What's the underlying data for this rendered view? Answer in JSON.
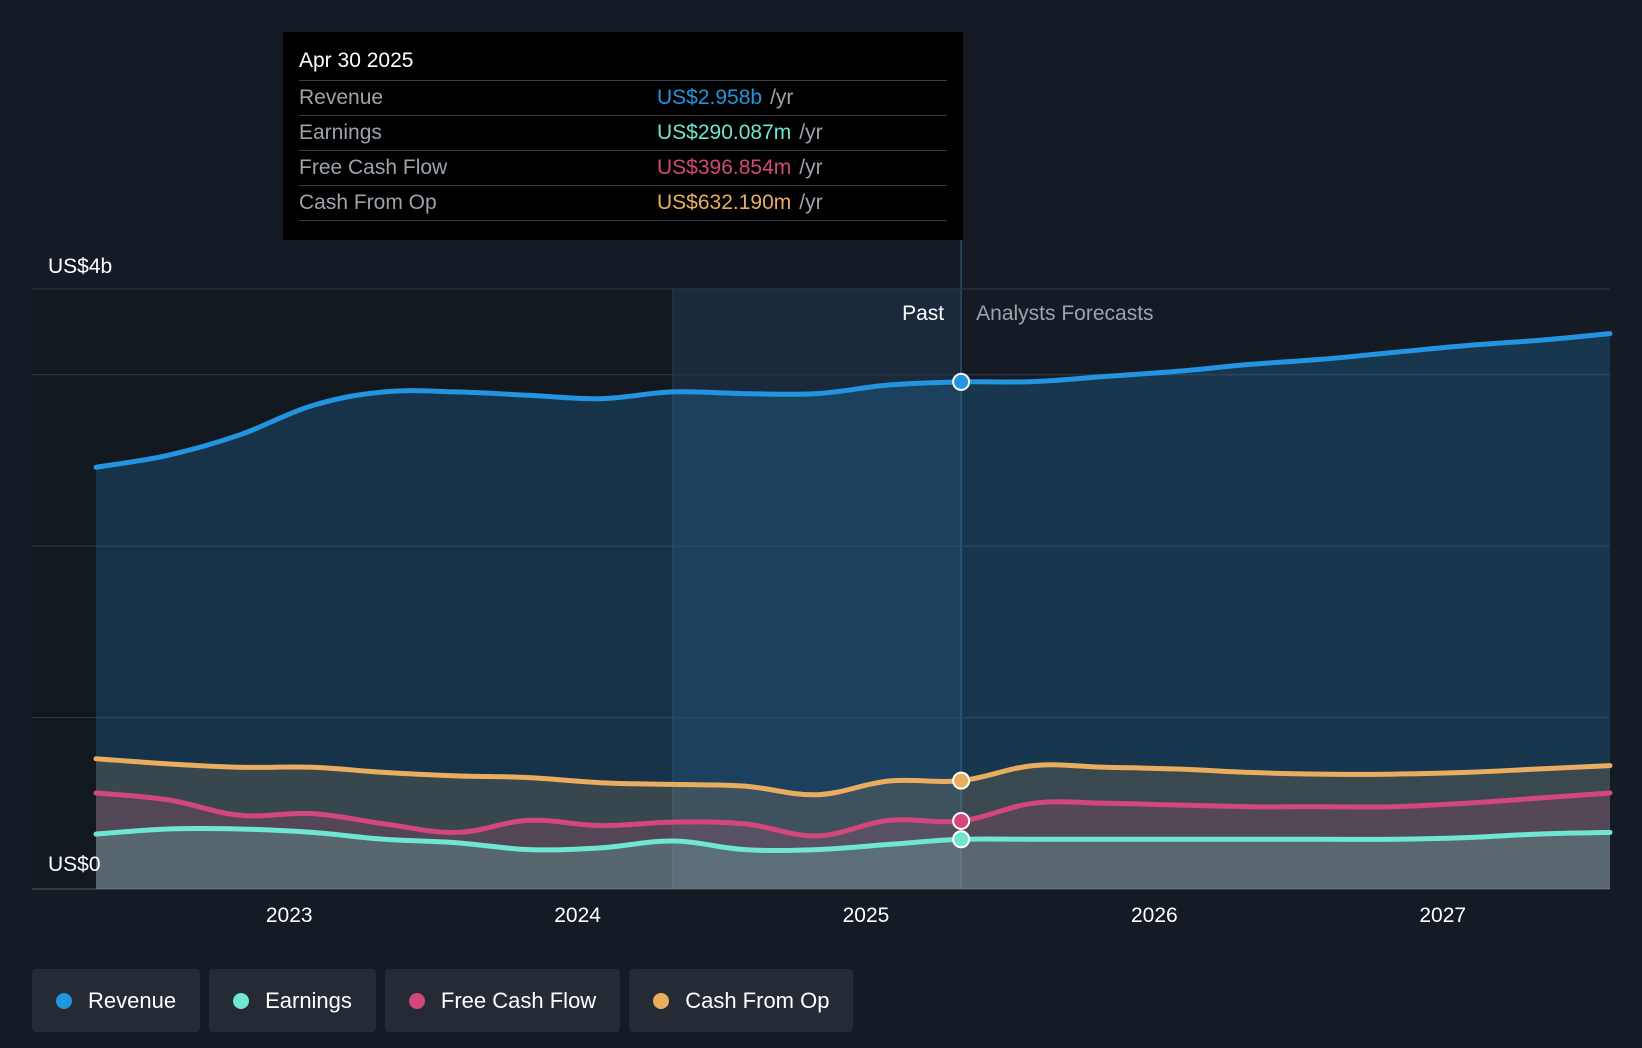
{
  "tooltip": {
    "date": "Apr 30 2025",
    "rows": [
      {
        "label": "Revenue",
        "value": "US$2.958b",
        "unit": "/yr",
        "color": "#2394df"
      },
      {
        "label": "Earnings",
        "value": "US$290.087m",
        "unit": "/yr",
        "color": "#6ee6d2"
      },
      {
        "label": "Free Cash Flow",
        "value": "US$396.854m",
        "unit": "/yr",
        "color": "#d4477c"
      },
      {
        "label": "Cash From Op",
        "value": "US$632.190m",
        "unit": "/yr",
        "color": "#eaad60"
      }
    ]
  },
  "sections": {
    "past": "Past",
    "forecast": "Analysts Forecasts"
  },
  "legend": [
    {
      "label": "Revenue",
      "color": "#2394df"
    },
    {
      "label": "Earnings",
      "color": "#6ee6d2"
    },
    {
      "label": "Free Cash Flow",
      "color": "#d4477c"
    },
    {
      "label": "Cash From Op",
      "color": "#eaad60"
    }
  ],
  "chart_data": {
    "type": "area",
    "title": "",
    "xlabel": "",
    "ylabel": "",
    "x_ticks": [
      {
        "label": "2023",
        "value": 2023.0
      },
      {
        "label": "2024",
        "value": 2024.0
      },
      {
        "label": "2025",
        "value": 2025.0
      },
      {
        "label": "2026",
        "value": 2026.0
      },
      {
        "label": "2027",
        "value": 2027.0
      }
    ],
    "y_ticks": [
      {
        "label": "US$0",
        "value": 0
      },
      {
        "label": "US$4b",
        "value": 3.5
      }
    ],
    "xlim": [
      2022.0,
      2027.6
    ],
    "ylim": [
      0,
      3.5
    ],
    "y_grid": [
      0,
      1,
      2,
      3,
      3.5
    ],
    "highlight_start": 2024.33,
    "past_end": 2025.33,
    "series": [
      {
        "name": "Revenue",
        "color": "#2394df",
        "points": [
          [
            2022.33,
            2.46
          ],
          [
            2022.58,
            2.53
          ],
          [
            2022.83,
            2.65
          ],
          [
            2023.08,
            2.82
          ],
          [
            2023.33,
            2.9
          ],
          [
            2023.58,
            2.9
          ],
          [
            2023.83,
            2.88
          ],
          [
            2024.08,
            2.86
          ],
          [
            2024.33,
            2.9
          ],
          [
            2024.58,
            2.89
          ],
          [
            2024.83,
            2.89
          ],
          [
            2025.08,
            2.94
          ],
          [
            2025.33,
            2.958
          ],
          [
            2025.58,
            2.96
          ],
          [
            2025.83,
            2.99
          ],
          [
            2026.08,
            3.02
          ],
          [
            2026.33,
            3.06
          ],
          [
            2026.58,
            3.09
          ],
          [
            2026.83,
            3.13
          ],
          [
            2027.08,
            3.17
          ],
          [
            2027.33,
            3.2
          ],
          [
            2027.58,
            3.24
          ]
        ]
      },
      {
        "name": "Cash From Op",
        "color": "#eaad60",
        "points": [
          [
            2022.33,
            0.76
          ],
          [
            2022.58,
            0.73
          ],
          [
            2022.83,
            0.71
          ],
          [
            2023.08,
            0.71
          ],
          [
            2023.33,
            0.68
          ],
          [
            2023.58,
            0.66
          ],
          [
            2023.83,
            0.65
          ],
          [
            2024.08,
            0.62
          ],
          [
            2024.33,
            0.61
          ],
          [
            2024.58,
            0.6
          ],
          [
            2024.83,
            0.55
          ],
          [
            2025.08,
            0.63
          ],
          [
            2025.33,
            0.632
          ],
          [
            2025.58,
            0.72
          ],
          [
            2025.83,
            0.71
          ],
          [
            2026.08,
            0.7
          ],
          [
            2026.33,
            0.68
          ],
          [
            2026.58,
            0.67
          ],
          [
            2026.83,
            0.67
          ],
          [
            2027.08,
            0.68
          ],
          [
            2027.33,
            0.7
          ],
          [
            2027.58,
            0.72
          ]
        ]
      },
      {
        "name": "Free Cash Flow",
        "color": "#d4477c",
        "points": [
          [
            2022.33,
            0.56
          ],
          [
            2022.58,
            0.52
          ],
          [
            2022.83,
            0.43
          ],
          [
            2023.08,
            0.44
          ],
          [
            2023.33,
            0.38
          ],
          [
            2023.58,
            0.33
          ],
          [
            2023.83,
            0.4
          ],
          [
            2024.08,
            0.37
          ],
          [
            2024.33,
            0.39
          ],
          [
            2024.58,
            0.38
          ],
          [
            2024.83,
            0.31
          ],
          [
            2025.08,
            0.4
          ],
          [
            2025.33,
            0.397
          ],
          [
            2025.58,
            0.5
          ],
          [
            2025.83,
            0.5
          ],
          [
            2026.08,
            0.49
          ],
          [
            2026.33,
            0.48
          ],
          [
            2026.58,
            0.48
          ],
          [
            2026.83,
            0.48
          ],
          [
            2027.08,
            0.5
          ],
          [
            2027.33,
            0.53
          ],
          [
            2027.58,
            0.56
          ]
        ]
      },
      {
        "name": "Earnings",
        "color": "#6ee6d2",
        "points": [
          [
            2022.33,
            0.32
          ],
          [
            2022.58,
            0.35
          ],
          [
            2022.83,
            0.35
          ],
          [
            2023.08,
            0.33
          ],
          [
            2023.33,
            0.29
          ],
          [
            2023.58,
            0.27
          ],
          [
            2023.83,
            0.23
          ],
          [
            2024.08,
            0.24
          ],
          [
            2024.33,
            0.28
          ],
          [
            2024.58,
            0.23
          ],
          [
            2024.83,
            0.23
          ],
          [
            2025.08,
            0.26
          ],
          [
            2025.33,
            0.29
          ],
          [
            2025.58,
            0.29
          ],
          [
            2025.83,
            0.29
          ],
          [
            2026.08,
            0.29
          ],
          [
            2026.33,
            0.29
          ],
          [
            2026.58,
            0.29
          ],
          [
            2026.83,
            0.29
          ],
          [
            2027.08,
            0.3
          ],
          [
            2027.33,
            0.32
          ],
          [
            2027.58,
            0.33
          ]
        ]
      }
    ]
  }
}
